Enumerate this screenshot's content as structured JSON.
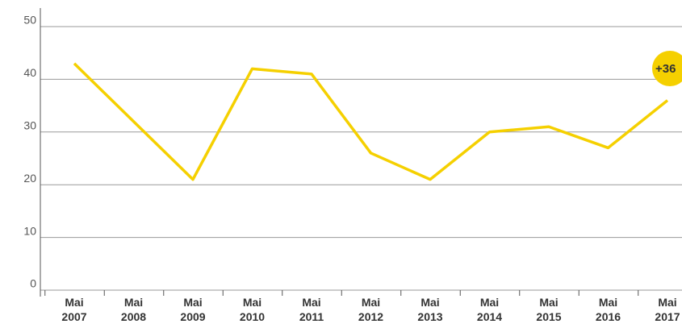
{
  "chart_data": {
    "type": "line",
    "categories": [
      "Mai 2007",
      "Mai 2008",
      "Mai 2009",
      "Mai 2010",
      "Mai 2011",
      "Mai 2012",
      "Mai 2013",
      "Mai 2014",
      "Mai 2015",
      "Mai 2016",
      "Mai 2017"
    ],
    "values": [
      43,
      32,
      21,
      42,
      41,
      26,
      21,
      30,
      31,
      27,
      36
    ],
    "color": "#f5d000",
    "ylim": [
      0,
      50
    ],
    "yticks": [
      0,
      10,
      20,
      30,
      40,
      50
    ],
    "grid": true,
    "annotation": "+36"
  }
}
